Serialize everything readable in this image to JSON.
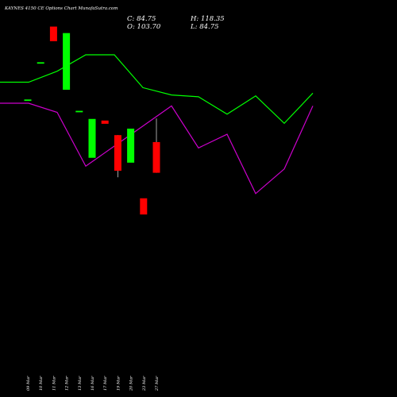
{
  "header": {
    "title": "KAYNES 4150  CE Options  Chart MunafaSutra.com",
    "close_label": "C: 84.75",
    "high_label": "H: 118.35",
    "open_label": "O: 103.70",
    "low_label": "L: 84.75"
  },
  "colors": {
    "background": "#000000",
    "line_upper": "#00ff00",
    "line_lower": "#cc00cc",
    "candle_up": "#00ff00",
    "candle_down": "#ff0000",
    "text": "#ffffff"
  },
  "chart_data": {
    "type": "candlestick",
    "categories": [
      "09 Mar",
      "10 Mar",
      "11 Mar",
      "12 Mar",
      "13 Mar",
      "16 Mar",
      "17 Mar",
      "19 Mar",
      "20 Mar",
      "23 Mar",
      "27 Mar"
    ],
    "candles": [
      {
        "open": 130.0,
        "high": 130.0,
        "low": 130.0,
        "close": 130.0
      },
      {
        "open": 153.0,
        "high": 153.0,
        "low": 153.0,
        "close": 153.0
      },
      {
        "open": 175.0,
        "high": 175.0,
        "low": 166.0,
        "close": 166.0
      },
      {
        "open": 136.0,
        "high": 171.0,
        "low": 136.0,
        "close": 171.0
      },
      {
        "open": 123.0,
        "high": 123.0,
        "low": 123.0,
        "close": 123.0
      },
      {
        "open": 94.0,
        "high": 118.0,
        "low": 94.0,
        "close": 118.0
      },
      {
        "open": 117.0,
        "high": 117.0,
        "low": 115.0,
        "close": 115.0
      },
      {
        "open": 108.0,
        "high": 108.0,
        "low": 82.0,
        "close": 86.0
      },
      {
        "open": 91.0,
        "high": 112.0,
        "low": 91.0,
        "close": 112.0
      },
      {
        "open": 69.0,
        "high": 69.0,
        "low": 59.0,
        "close": 59.0
      },
      {
        "open": 103.7,
        "high": 118.35,
        "low": 84.75,
        "close": 84.75
      }
    ],
    "upper_line": [
      310,
      310,
      322,
      340,
      340,
      304,
      296,
      294,
      275,
      295,
      265,
      298
    ],
    "lower_line": [
      287,
      287,
      277,
      218,
      240,
      262,
      284,
      238,
      253,
      188,
      215,
      284
    ]
  }
}
